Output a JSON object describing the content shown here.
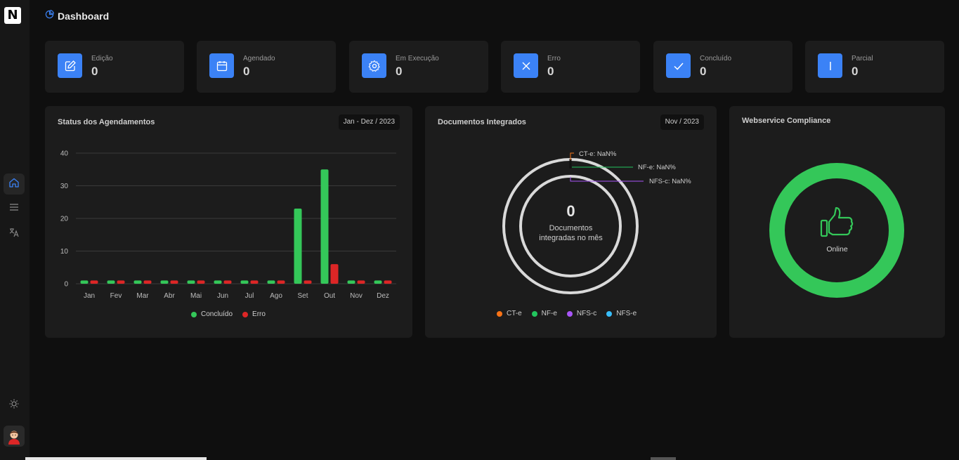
{
  "app": {
    "logo": "N",
    "title": "Dashboard"
  },
  "sidebar": {
    "items": [
      {
        "name": "home",
        "icon": "home-icon",
        "active": true
      },
      {
        "name": "menu",
        "icon": "menu-icon",
        "active": false
      },
      {
        "name": "language",
        "icon": "translate-icon",
        "active": false
      }
    ],
    "theme_icon": "sun-icon",
    "avatar_icon": "user-avatar"
  },
  "stats": [
    {
      "label": "Edição",
      "value": "0",
      "icon": "edit-icon"
    },
    {
      "label": "Agendado",
      "value": "0",
      "icon": "calendar-icon"
    },
    {
      "label": "Em Execução",
      "value": "0",
      "icon": "gear-icon"
    },
    {
      "label": "Erro",
      "value": "0",
      "icon": "close-icon"
    },
    {
      "label": "Concluído",
      "value": "0",
      "icon": "check-icon"
    },
    {
      "label": "Parcial",
      "value": "0",
      "icon": "partial-icon"
    }
  ],
  "schedules_panel": {
    "title": "Status dos Agendamentos",
    "period": "Jan - Dez / 2023"
  },
  "documents_panel": {
    "title": "Documentos Integrados",
    "period": "Nov / 2023",
    "center_value": "0",
    "center_line1": "Documentos",
    "center_line2": "integradas no mês",
    "callouts": [
      "CT-e: NaN%",
      "NF-e: NaN%",
      "NFS-c: NaN%"
    ],
    "legend": [
      {
        "label": "CT-e",
        "color": "#f97316"
      },
      {
        "label": "NF-e",
        "color": "#22c55e"
      },
      {
        "label": "NFS-c",
        "color": "#a855f7"
      },
      {
        "label": "NFS-e",
        "color": "#38bdf8"
      }
    ]
  },
  "webservice_panel": {
    "title": "Webservice Compliance",
    "status": "Online",
    "icon": "thumbs-up-icon",
    "ring_color": "#34c759"
  },
  "chart_data": {
    "type": "bar",
    "categories": [
      "Jan",
      "Fev",
      "Mar",
      "Abr",
      "Mai",
      "Jun",
      "Jul",
      "Ago",
      "Set",
      "Out",
      "Nov",
      "Dez"
    ],
    "series": [
      {
        "name": "Concluído",
        "color": "#34c759",
        "values": [
          1,
          1,
          1,
          1,
          1,
          1,
          1,
          1,
          23,
          35,
          1,
          1
        ]
      },
      {
        "name": "Erro",
        "color": "#dc2626",
        "values": [
          1,
          1,
          1,
          1,
          1,
          1,
          1,
          1,
          1,
          6,
          1,
          1
        ]
      }
    ],
    "yticks": [
      "0",
      "10",
      "20",
      "30",
      "40"
    ],
    "ylim": [
      0,
      40
    ],
    "grid": true,
    "legend_position": "bottom"
  }
}
